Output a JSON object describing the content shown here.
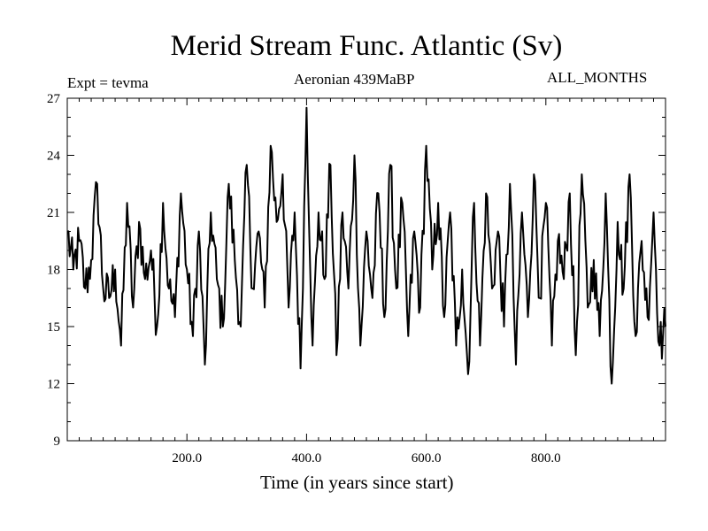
{
  "chart_data": {
    "type": "line",
    "title": "Merid Stream Func. Atlantic (Sv)",
    "subtitle": "Aeronian 439MaBP",
    "experiment_label": "Expt = tevma",
    "period_label": "ALL_MONTHS",
    "xlabel": "Time (in years since start)",
    "ylabel": "",
    "xlim": [
      0,
      1000
    ],
    "ylim": [
      9,
      27
    ],
    "xticks": [
      200,
      400,
      600,
      800
    ],
    "xtick_labels": [
      "200.0",
      "400.0",
      "600.0",
      "800.0"
    ],
    "yticks": [
      9,
      12,
      15,
      18,
      21,
      24,
      27
    ],
    "ytick_labels": [
      "9",
      "12",
      "15",
      "18",
      "21",
      "24",
      "27"
    ],
    "grid": false,
    "series": [
      {
        "name": "Merid Stream Func. Atlantic",
        "x": [
          0,
          10,
          20,
          30,
          40,
          50,
          60,
          70,
          80,
          90,
          100,
          110,
          120,
          130,
          140,
          150,
          160,
          170,
          180,
          190,
          200,
          210,
          220,
          230,
          240,
          250,
          260,
          270,
          280,
          290,
          300,
          310,
          320,
          330,
          340,
          350,
          360,
          370,
          380,
          390,
          400,
          410,
          420,
          430,
          440,
          450,
          460,
          470,
          480,
          490,
          500,
          510,
          520,
          530,
          540,
          550,
          560,
          570,
          580,
          590,
          600,
          610,
          620,
          630,
          640,
          650,
          660,
          670,
          680,
          690,
          700,
          710,
          720,
          730,
          740,
          750,
          760,
          770,
          780,
          790,
          800,
          810,
          820,
          830,
          840,
          850,
          860,
          870,
          880,
          890,
          900,
          910,
          920,
          930,
          940,
          950,
          960,
          970,
          980,
          990,
          1000
        ],
        "y": [
          20.0,
          18.0,
          19.5,
          17.0,
          18.5,
          22.5,
          17.0,
          16.5,
          18.0,
          14.0,
          21.5,
          16.0,
          20.5,
          17.5,
          19.0,
          15.0,
          21.5,
          17.0,
          15.5,
          22.0,
          18.0,
          14.5,
          20.0,
          13.0,
          21.0,
          17.5,
          15.0,
          22.5,
          18.5,
          15.0,
          23.5,
          17.0,
          20.0,
          16.0,
          24.5,
          20.5,
          23.0,
          16.0,
          21.0,
          12.8,
          26.5,
          14.0,
          21.0,
          17.5,
          23.5,
          13.5,
          21.0,
          17.0,
          24.0,
          14.0,
          20.0,
          16.5,
          22.0,
          15.5,
          23.5,
          17.0,
          21.5,
          14.5,
          20.0,
          16.0,
          24.5,
          18.0,
          21.5,
          15.5,
          21.0,
          14.0,
          18.0,
          12.5,
          21.5,
          14.0,
          22.0,
          17.0,
          20.0,
          15.0,
          22.5,
          13.0,
          21.0,
          15.5,
          23.0,
          16.5,
          21.5,
          14.0,
          19.5,
          17.5,
          22.0,
          13.5,
          23.0,
          16.0,
          18.5,
          14.5,
          22.0,
          12.0,
          20.5,
          17.0,
          23.0,
          14.5,
          19.5,
          15.5,
          21.0,
          14.0,
          15.0
        ]
      }
    ]
  }
}
